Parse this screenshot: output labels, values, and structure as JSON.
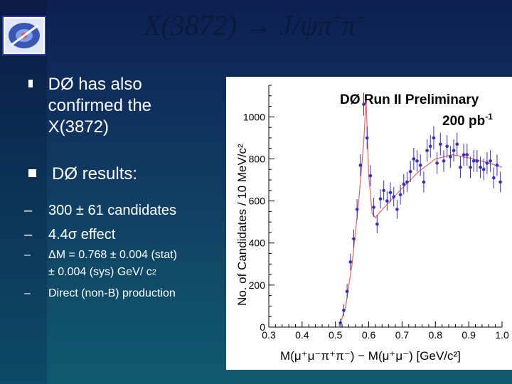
{
  "slide": {
    "title_main": "X(3872) → J/ψπ",
    "title_sup1": "+",
    "title_pi2": "π",
    "title_sup2": "−",
    "bullets": [
      "DØ has also confirmed the X(3872)",
      "DØ results:"
    ],
    "sub_items": [
      "300 ± 61 candidates",
      "4.4σ effect"
    ],
    "sub_small": [
      "ΔM = 0.768  ±  0.004 (stat)",
      "±  0.004 (sys) GeV/ c",
      "Direct (non-B) production"
    ],
    "sub_small_sup": "2",
    "dash": "–"
  },
  "chart_data": {
    "type": "scatter",
    "title": "DØ Run II Preliminary",
    "subtitle": "200 pb",
    "subtitle_sup": "-1",
    "ylabel": "No. of Candidates / 10 MeV/c²",
    "xlabel": "M(μ⁺μ⁻π⁺π⁻) − M(μ⁺μ⁻) [GeV/c²]",
    "xlim": [
      0.3,
      1.0
    ],
    "ylim": [
      0,
      1150
    ],
    "xticks": [
      "0.3",
      "0.4",
      "0.5",
      "0.6",
      "0.7",
      "0.8",
      "0.9",
      "1.0"
    ],
    "yticks": [
      "0",
      "200",
      "400",
      "600",
      "800",
      "1000"
    ],
    "series": [
      {
        "x": [
          0.515,
          0.525,
          0.535,
          0.545,
          0.555,
          0.565,
          0.575,
          0.585,
          0.595,
          0.605,
          0.615,
          0.625,
          0.635,
          0.645,
          0.655,
          0.665,
          0.675,
          0.685,
          0.695,
          0.705,
          0.715,
          0.725,
          0.735,
          0.745,
          0.755,
          0.765,
          0.775,
          0.785,
          0.795,
          0.805,
          0.815,
          0.825,
          0.835,
          0.845,
          0.855,
          0.865,
          0.875,
          0.885,
          0.895,
          0.905,
          0.915,
          0.925,
          0.935,
          0.945,
          0.955,
          0.965,
          0.975,
          0.985,
          0.995
        ],
        "y": [
          20,
          80,
          170,
          310,
          420,
          560,
          770,
          1060,
          900,
          720,
          570,
          490,
          610,
          650,
          600,
          640,
          620,
          560,
          630,
          680,
          690,
          740,
          800,
          790,
          770,
          690,
          840,
          860,
          900,
          780,
          870,
          790,
          860,
          810,
          840,
          870,
          760,
          820,
          820,
          760,
          790,
          790,
          760,
          750,
          780,
          790,
          710,
          770,
          690
        ],
        "errors": [
          20,
          28,
          35,
          40,
          44,
          48,
          52,
          55,
          54,
          50,
          46,
          44,
          46,
          47,
          46,
          47,
          46,
          45,
          47,
          48,
          48,
          50,
          52,
          51,
          51,
          49,
          53,
          54,
          55,
          51,
          54,
          51,
          53,
          52,
          53,
          54,
          51,
          52,
          52,
          51,
          52,
          52,
          51,
          51,
          52,
          52,
          50,
          51,
          49
        ]
      }
    ],
    "fit_curve": [
      [
        0.51,
        0
      ],
      [
        0.53,
        90
      ],
      [
        0.55,
        300
      ],
      [
        0.57,
        600
      ],
      [
        0.585,
        880
      ],
      [
        0.592,
        1080
      ],
      [
        0.6,
        720
      ],
      [
        0.61,
        540
      ],
      [
        0.62,
        520
      ],
      [
        0.63,
        540
      ],
      [
        0.65,
        575
      ],
      [
        0.7,
        660
      ],
      [
        0.75,
        740
      ],
      [
        0.8,
        800
      ],
      [
        0.85,
        820
      ],
      [
        0.9,
        805
      ],
      [
        0.95,
        785
      ],
      [
        1.0,
        760
      ]
    ],
    "colors": {
      "points": "#3a2fb0",
      "fit": "#e06666",
      "axis": "#000000"
    }
  }
}
